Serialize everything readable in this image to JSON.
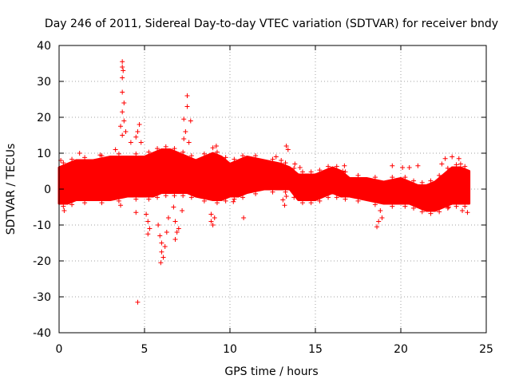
{
  "chart_data": {
    "type": "scatter",
    "title": "Day 246 of 2011, Sidereal Day-to-day VTEC variation (SDTVAR) for receiver bndy",
    "xlabel": "GPS time / hours",
    "ylabel": "SDTVAR / TECUs",
    "xlim": [
      0,
      25
    ],
    "ylim": [
      -40,
      40
    ],
    "xticks": [
      0,
      5,
      10,
      15,
      20,
      25
    ],
    "yticks": [
      -40,
      -30,
      -20,
      -10,
      0,
      10,
      20,
      30,
      40
    ],
    "xtick_labels": [
      "0",
      "5",
      "10",
      "15",
      "20",
      "25"
    ],
    "ytick_labels": [
      "-40",
      "-30",
      "-20",
      "-10",
      "0",
      "10",
      "20",
      "30",
      "40"
    ],
    "grid": true,
    "marker": "+",
    "color": "#ff0000",
    "envelope": {
      "x": [
        0.0,
        0.5,
        1.0,
        2.0,
        3.0,
        4.0,
        5.0,
        5.5,
        6.0,
        6.5,
        7.0,
        7.5,
        8.0,
        9.0,
        9.5,
        10.0,
        10.5,
        11.0,
        12.0,
        13.0,
        13.5,
        14.0,
        14.5,
        15.0,
        15.5,
        16.0,
        16.5,
        17.0,
        18.0,
        19.0,
        20.0,
        20.5,
        21.0,
        21.5,
        22.0,
        22.5,
        23.0,
        23.5,
        24.0
      ],
      "upper": [
        6,
        7,
        8,
        8,
        9,
        9,
        9,
        10,
        11,
        11,
        10,
        9,
        8,
        10,
        9,
        7,
        8,
        9,
        8,
        7,
        6,
        4,
        4,
        4,
        5,
        6,
        5,
        3,
        3,
        2,
        3,
        2,
        1,
        1,
        2,
        4,
        6,
        6,
        5
      ],
      "lower": [
        -4,
        -4,
        -3,
        -3,
        -3,
        -2,
        -2,
        -2,
        -1,
        -1,
        -1,
        -1,
        -2,
        -3,
        -3,
        -2,
        -2,
        -1,
        0,
        0,
        0,
        -3,
        -3,
        -3,
        -2,
        -1,
        -2,
        -2,
        -3,
        -4,
        -4,
        -4,
        -5,
        -6,
        -6,
        -5,
        -4,
        -4,
        -4
      ]
    },
    "excursions": [
      {
        "x": 3.7,
        "y": 35.5
      },
      {
        "x": 3.7,
        "y": 34
      },
      {
        "x": 3.75,
        "y": 33
      },
      {
        "x": 3.7,
        "y": 31
      },
      {
        "x": 3.7,
        "y": 27
      },
      {
        "x": 3.8,
        "y": 24
      },
      {
        "x": 3.7,
        "y": 21.5
      },
      {
        "x": 3.8,
        "y": 19
      },
      {
        "x": 3.6,
        "y": 17.5
      },
      {
        "x": 3.9,
        "y": 16
      },
      {
        "x": 3.7,
        "y": 15
      },
      {
        "x": 4.2,
        "y": 13
      },
      {
        "x": 4.5,
        "y": 14.5
      },
      {
        "x": 4.7,
        "y": 18
      },
      {
        "x": 4.6,
        "y": 16
      },
      {
        "x": 4.8,
        "y": 13
      },
      {
        "x": 4.6,
        "y": -31.5
      },
      {
        "x": 4.5,
        "y": -6.5
      },
      {
        "x": 3.6,
        "y": -4.5
      },
      {
        "x": 5.1,
        "y": -7
      },
      {
        "x": 5.2,
        "y": -9
      },
      {
        "x": 5.3,
        "y": -11
      },
      {
        "x": 5.2,
        "y": -12.5
      },
      {
        "x": 5.8,
        "y": -10
      },
      {
        "x": 5.9,
        "y": -13
      },
      {
        "x": 6.0,
        "y": -15
      },
      {
        "x": 6.0,
        "y": -17.5
      },
      {
        "x": 5.95,
        "y": -20.5
      },
      {
        "x": 6.1,
        "y": -19
      },
      {
        "x": 6.2,
        "y": -16
      },
      {
        "x": 6.3,
        "y": -12
      },
      {
        "x": 6.4,
        "y": -8
      },
      {
        "x": 6.8,
        "y": -9
      },
      {
        "x": 6.9,
        "y": -12
      },
      {
        "x": 6.8,
        "y": -14
      },
      {
        "x": 7.0,
        "y": -11
      },
      {
        "x": 7.2,
        "y": -6
      },
      {
        "x": 7.3,
        "y": 19.5
      },
      {
        "x": 7.5,
        "y": 26
      },
      {
        "x": 7.5,
        "y": 23
      },
      {
        "x": 7.7,
        "y": 19
      },
      {
        "x": 7.4,
        "y": 16
      },
      {
        "x": 7.3,
        "y": 14
      },
      {
        "x": 7.6,
        "y": 13
      },
      {
        "x": 8.9,
        "y": -7
      },
      {
        "x": 8.9,
        "y": -9
      },
      {
        "x": 9.0,
        "y": -10
      },
      {
        "x": 9.1,
        "y": -8
      },
      {
        "x": 9.2,
        "y": 12
      },
      {
        "x": 9.0,
        "y": 11.5
      },
      {
        "x": 10.8,
        "y": -8
      },
      {
        "x": 10.2,
        "y": -3.5
      },
      {
        "x": 13.0,
        "y": 8
      },
      {
        "x": 13.1,
        "y": -3
      },
      {
        "x": 13.2,
        "y": -4.5
      },
      {
        "x": 13.3,
        "y": 12
      },
      {
        "x": 13.4,
        "y": 11
      },
      {
        "x": 13.3,
        "y": -2
      },
      {
        "x": 12.7,
        "y": 9
      },
      {
        "x": 0.1,
        "y": 8
      },
      {
        "x": 0.3,
        "y": -6
      },
      {
        "x": 1.2,
        "y": 10
      },
      {
        "x": 2.4,
        "y": 9.5
      },
      {
        "x": 3.3,
        "y": 11
      },
      {
        "x": 5.6,
        "y": 5
      },
      {
        "x": 6.7,
        "y": -5
      },
      {
        "x": 13.8,
        "y": 7
      },
      {
        "x": 14.1,
        "y": 6
      },
      {
        "x": 16.7,
        "y": 6.5
      },
      {
        "x": 16.6,
        "y": 5
      },
      {
        "x": 18.6,
        "y": -10.5
      },
      {
        "x": 18.7,
        "y": -9
      },
      {
        "x": 18.9,
        "y": -8
      },
      {
        "x": 18.8,
        "y": -6
      },
      {
        "x": 19.5,
        "y": 6.5
      },
      {
        "x": 20.1,
        "y": 6
      },
      {
        "x": 20.5,
        "y": 6
      },
      {
        "x": 21.0,
        "y": 6.5
      },
      {
        "x": 22.4,
        "y": 7
      },
      {
        "x": 22.6,
        "y": 8.5
      },
      {
        "x": 22.8,
        "y": -5
      },
      {
        "x": 23.0,
        "y": 9
      },
      {
        "x": 23.4,
        "y": 8.5
      },
      {
        "x": 23.6,
        "y": -6
      },
      {
        "x": 23.9,
        "y": -6.5
      },
      {
        "x": 23.5,
        "y": 7
      }
    ]
  }
}
